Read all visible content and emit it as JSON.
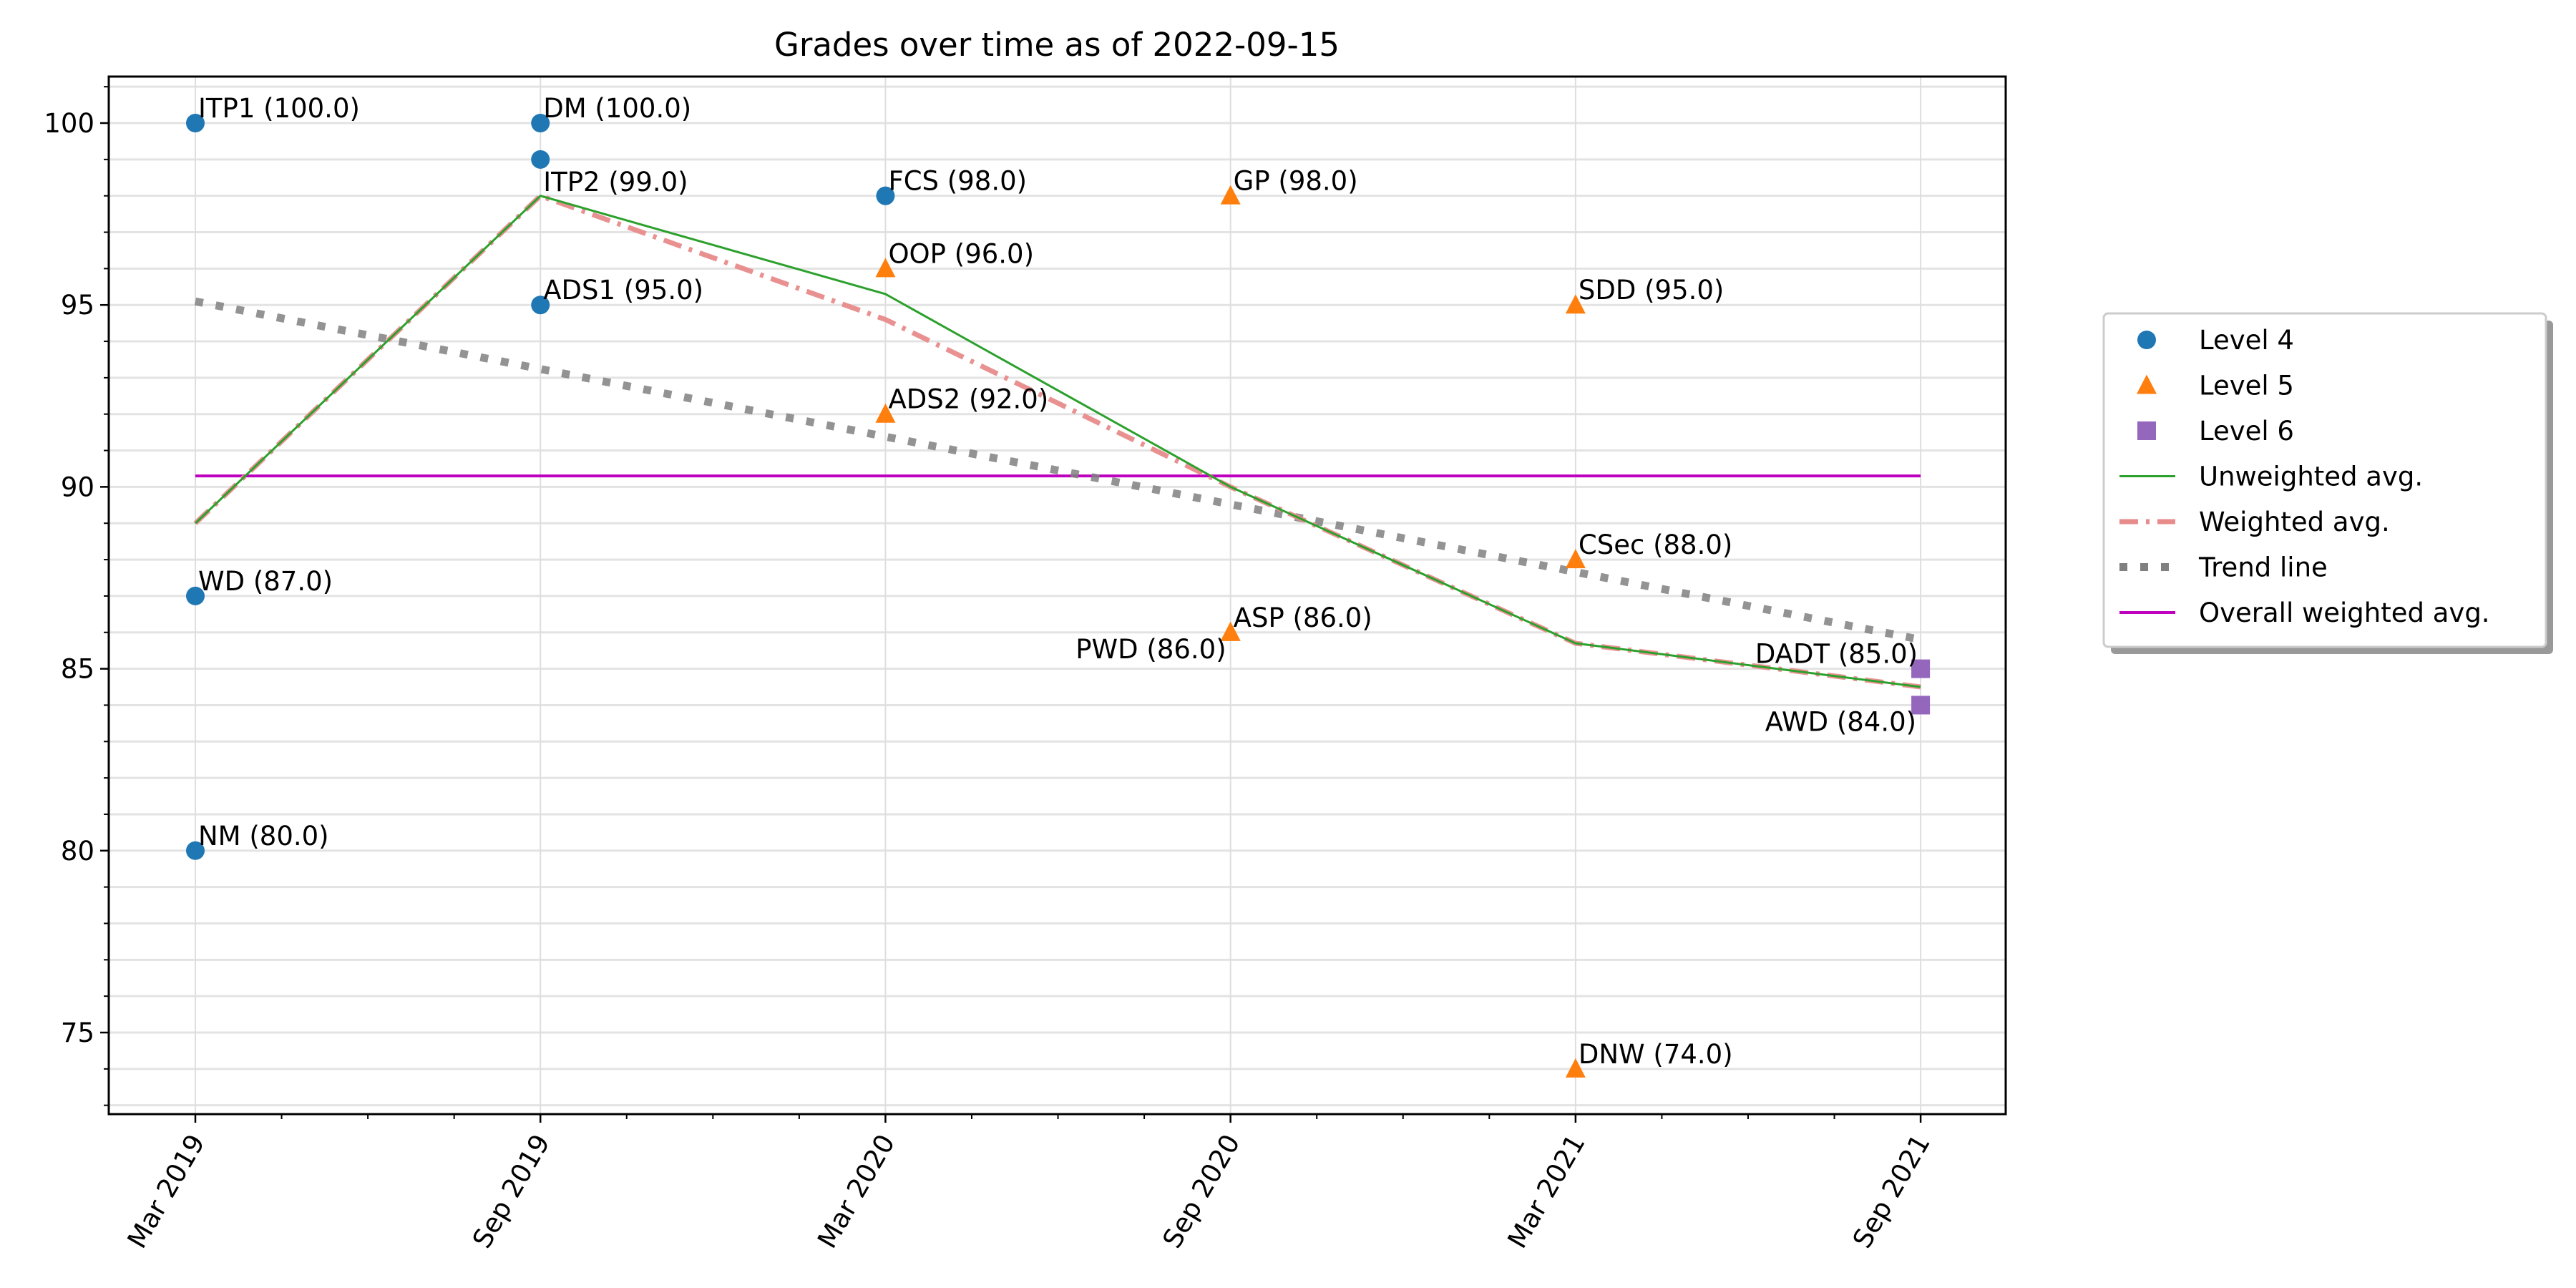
{
  "chart_data": {
    "type": "line",
    "title": "Grades over time as of 2022-09-15",
    "xlabel": "",
    "ylabel": "",
    "x_ticks": [
      "Mar 2019",
      "Sep 2019",
      "Mar 2020",
      "Sep 2020",
      "Mar 2021",
      "Sep 2021"
    ],
    "x_tick_dates": [
      "2019-03",
      "2019-09",
      "2020-03",
      "2020-09",
      "2021-03",
      "2021-09"
    ],
    "xlim": [
      "2019-01-15",
      "2021-10-15"
    ],
    "y_ticks": [
      75,
      80,
      85,
      90,
      95,
      100
    ],
    "ylim": [
      72.75,
      101.3
    ],
    "grid": {
      "major": true,
      "minor_y_step": 1
    },
    "legend": {
      "placement": "outside right",
      "shadow": true
    },
    "scatter_series": [
      {
        "name": "Level 4",
        "marker": "circle",
        "color": "#1f77b4",
        "points": [
          {
            "label": "ITP1 (100.0)",
            "date": "2019-03",
            "y": 100.0
          },
          {
            "label": "WD (87.0)",
            "date": "2019-03",
            "y": 87.0
          },
          {
            "label": "NM (80.0)",
            "date": "2019-03",
            "y": 80.0
          },
          {
            "label": "DM (100.0)",
            "date": "2019-09",
            "y": 100.0
          },
          {
            "label": "ITP2 (99.0)",
            "date": "2019-09",
            "y": 99.0,
            "label_pos": "below"
          },
          {
            "label": "ADS1 (95.0)",
            "date": "2019-09",
            "y": 95.0
          },
          {
            "label": "FCS (98.0)",
            "date": "2020-03",
            "y": 98.0
          }
        ]
      },
      {
        "name": "Level 5",
        "marker": "triangle",
        "color": "#ff7f0e",
        "points": [
          {
            "label": "OOP (96.0)",
            "date": "2020-03",
            "y": 96.0
          },
          {
            "label": "ADS2 (92.0)",
            "date": "2020-03",
            "y": 92.0
          },
          {
            "label": "GP (98.0)",
            "date": "2020-09",
            "y": 98.0
          },
          {
            "label": "ASP (86.0)",
            "date": "2020-09",
            "y": 86.0
          },
          {
            "label": "PWD (86.0)",
            "date": "2020-09",
            "y": 86.0,
            "label_pos": "left-below"
          },
          {
            "label": "SDD (95.0)",
            "date": "2021-03",
            "y": 95.0
          },
          {
            "label": "CSec (88.0)",
            "date": "2021-03",
            "y": 88.0
          },
          {
            "label": "DNW (74.0)",
            "date": "2021-03",
            "y": 74.0
          }
        ]
      },
      {
        "name": "Level 6",
        "marker": "square",
        "color": "#9467bd",
        "points": [
          {
            "label": "DADT (85.0)",
            "date": "2021-09",
            "y": 85.0,
            "label_pos": "left-above"
          },
          {
            "label": "AWD (84.0)",
            "date": "2021-09",
            "y": 84.0,
            "label_pos": "left-below"
          }
        ]
      }
    ],
    "line_series": [
      {
        "name": "Unweighted avg.",
        "color": "#2ca02c",
        "style": "solid",
        "dates": [
          "2019-03",
          "2019-09",
          "2020-03",
          "2020-09",
          "2021-03",
          "2021-09"
        ],
        "values": [
          89.0,
          98.0,
          95.3,
          90.0,
          85.7,
          84.5
        ]
      },
      {
        "name": "Weighted avg.",
        "color": "#e88b8b",
        "style": "dashdot",
        "dates": [
          "2019-03",
          "2019-09",
          "2020-03",
          "2020-09",
          "2021-03",
          "2021-09"
        ],
        "values": [
          89.0,
          98.0,
          94.6,
          90.0,
          85.7,
          84.5
        ]
      },
      {
        "name": "Trend line",
        "color": "#808080",
        "style": "dotted",
        "dates": [
          "2019-03",
          "2021-09"
        ],
        "values": [
          95.1,
          85.8
        ]
      },
      {
        "name": "Overall weighted avg.",
        "color": "#bf00bf",
        "style": "solid",
        "dates": [
          "2019-03",
          "2021-09"
        ],
        "values": [
          90.3,
          90.3
        ]
      }
    ]
  }
}
